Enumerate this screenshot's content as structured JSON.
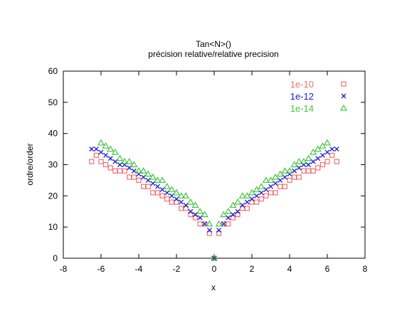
{
  "chart_data": {
    "type": "scatter",
    "title": "Tan<N>()",
    "subtitle": "précision relative/relative precision",
    "xlabel": "x",
    "ylabel": "ordre/order",
    "xlim": [
      -8,
      8
    ],
    "ylim": [
      0,
      60
    ],
    "x_ticks": [
      "-8",
      "-6",
      "-4",
      "-2",
      "0",
      "2",
      "4",
      "6",
      "8"
    ],
    "y_ticks": [
      "0",
      "10",
      "20",
      "30",
      "40",
      "50",
      "60"
    ],
    "grid": false,
    "legend_position": "top-right",
    "series": [
      {
        "name": "1e-10",
        "marker": "square",
        "color": "#f07070",
        "points": [
          [
            -6.5,
            31
          ],
          [
            -6.25,
            33
          ],
          [
            -6.0,
            31
          ],
          [
            -5.75,
            30
          ],
          [
            -5.5,
            29
          ],
          [
            -5.25,
            28
          ],
          [
            -5.0,
            28
          ],
          [
            -4.75,
            28
          ],
          [
            -4.5,
            26
          ],
          [
            -4.25,
            26
          ],
          [
            -4.0,
            25
          ],
          [
            -3.75,
            23
          ],
          [
            -3.5,
            23
          ],
          [
            -3.25,
            21
          ],
          [
            -3.0,
            21
          ],
          [
            -2.75,
            20
          ],
          [
            -2.5,
            19
          ],
          [
            -2.25,
            18
          ],
          [
            -2.0,
            18
          ],
          [
            -1.75,
            16
          ],
          [
            -1.5,
            16
          ],
          [
            -1.25,
            14
          ],
          [
            -1.0,
            13
          ],
          [
            -0.75,
            11
          ],
          [
            -0.5,
            11
          ],
          [
            -0.25,
            8
          ],
          [
            0.25,
            8
          ],
          [
            0.5,
            11
          ],
          [
            0.75,
            11
          ],
          [
            1.0,
            13
          ],
          [
            1.25,
            14
          ],
          [
            1.5,
            16
          ],
          [
            1.75,
            16
          ],
          [
            2.0,
            18
          ],
          [
            2.25,
            18
          ],
          [
            2.5,
            19
          ],
          [
            2.75,
            20
          ],
          [
            3.0,
            21
          ],
          [
            3.25,
            21
          ],
          [
            3.5,
            23
          ],
          [
            3.75,
            23
          ],
          [
            4.0,
            25
          ],
          [
            4.25,
            26
          ],
          [
            4.5,
            26
          ],
          [
            4.75,
            28
          ],
          [
            5.0,
            28
          ],
          [
            5.25,
            28
          ],
          [
            5.5,
            29
          ],
          [
            5.75,
            30
          ],
          [
            6.0,
            31
          ],
          [
            6.25,
            33
          ],
          [
            6.5,
            31
          ]
        ]
      },
      {
        "name": "1e-12",
        "marker": "cross",
        "color": "#1a1ad0",
        "points": [
          [
            -6.5,
            35
          ],
          [
            -6.25,
            35
          ],
          [
            -6.0,
            34
          ],
          [
            -5.75,
            33
          ],
          [
            -5.5,
            32
          ],
          [
            -5.25,
            31
          ],
          [
            -5.0,
            30
          ],
          [
            -4.75,
            30
          ],
          [
            -4.5,
            29
          ],
          [
            -4.25,
            28
          ],
          [
            -4.0,
            27
          ],
          [
            -3.75,
            26
          ],
          [
            -3.5,
            25
          ],
          [
            -3.25,
            24
          ],
          [
            -3.0,
            23
          ],
          [
            -2.75,
            22
          ],
          [
            -2.5,
            21
          ],
          [
            -2.25,
            20
          ],
          [
            -2.0,
            19
          ],
          [
            -1.75,
            18
          ],
          [
            -1.5,
            17
          ],
          [
            -1.25,
            15
          ],
          [
            -1.0,
            14
          ],
          [
            -0.75,
            13
          ],
          [
            -0.5,
            11
          ],
          [
            -0.25,
            9
          ],
          [
            0.25,
            9
          ],
          [
            0.5,
            11
          ],
          [
            0.75,
            13
          ],
          [
            1.0,
            14
          ],
          [
            1.25,
            15
          ],
          [
            1.5,
            17
          ],
          [
            1.75,
            18
          ],
          [
            2.0,
            19
          ],
          [
            2.25,
            20
          ],
          [
            2.5,
            21
          ],
          [
            2.75,
            22
          ],
          [
            3.0,
            23
          ],
          [
            3.25,
            24
          ],
          [
            3.5,
            25
          ],
          [
            3.75,
            26
          ],
          [
            4.0,
            27
          ],
          [
            4.25,
            28
          ],
          [
            4.5,
            29
          ],
          [
            4.75,
            30
          ],
          [
            5.0,
            30
          ],
          [
            5.25,
            31
          ],
          [
            5.5,
            32
          ],
          [
            5.75,
            33
          ],
          [
            6.0,
            34
          ],
          [
            6.25,
            35
          ],
          [
            6.5,
            35
          ]
        ]
      },
      {
        "name": "1e-14",
        "marker": "triangle",
        "color": "#44c444",
        "points": [
          [
            -6.0,
            37
          ],
          [
            -5.75,
            36
          ],
          [
            -5.5,
            35
          ],
          [
            -5.25,
            34
          ],
          [
            -5.0,
            32
          ],
          [
            -4.75,
            31
          ],
          [
            -4.5,
            31
          ],
          [
            -4.25,
            30
          ],
          [
            -4.0,
            28
          ],
          [
            -3.75,
            28
          ],
          [
            -3.5,
            27
          ],
          [
            -3.25,
            26
          ],
          [
            -3.0,
            25
          ],
          [
            -2.75,
            25
          ],
          [
            -2.5,
            23
          ],
          [
            -2.25,
            22
          ],
          [
            -2.0,
            21
          ],
          [
            -1.75,
            20
          ],
          [
            -1.5,
            20
          ],
          [
            -1.25,
            18
          ],
          [
            -1.0,
            17
          ],
          [
            -0.75,
            15
          ],
          [
            -0.5,
            14
          ],
          [
            -0.25,
            11
          ],
          [
            0.25,
            11
          ],
          [
            0.5,
            14
          ],
          [
            0.75,
            15
          ],
          [
            1.0,
            17
          ],
          [
            1.25,
            18
          ],
          [
            1.5,
            20
          ],
          [
            1.75,
            20
          ],
          [
            2.0,
            21
          ],
          [
            2.25,
            22
          ],
          [
            2.5,
            23
          ],
          [
            2.75,
            25
          ],
          [
            3.0,
            25
          ],
          [
            3.25,
            26
          ],
          [
            3.5,
            27
          ],
          [
            3.75,
            28
          ],
          [
            4.0,
            28
          ],
          [
            4.25,
            30
          ],
          [
            4.5,
            31
          ],
          [
            4.75,
            31
          ],
          [
            5.0,
            32
          ],
          [
            5.25,
            34
          ],
          [
            5.5,
            35
          ],
          [
            5.75,
            36
          ],
          [
            6.0,
            37
          ]
        ]
      }
    ],
    "origin_marker": [
      0,
      0
    ]
  }
}
